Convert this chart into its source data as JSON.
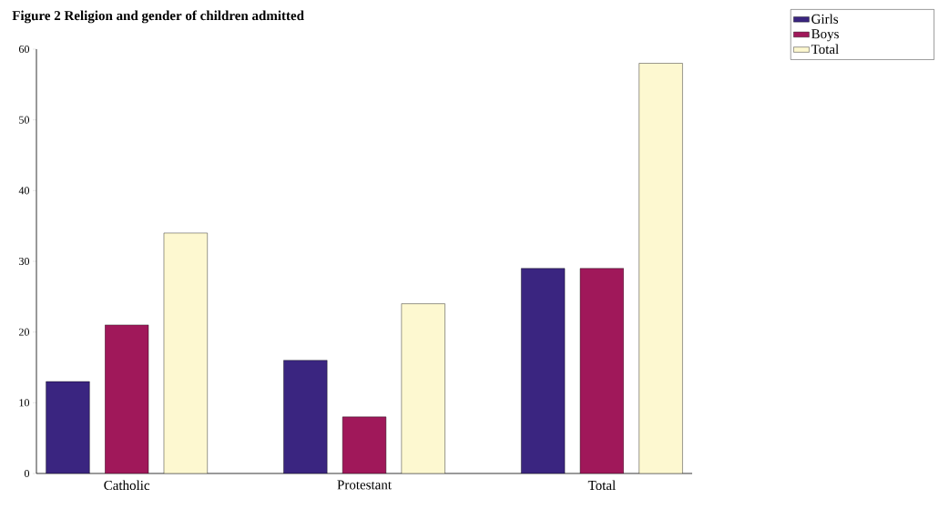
{
  "chart_data": {
    "type": "bar",
    "title": "**Figure 2 Religion and gender of children admitted**",
    "categories": [
      "Catholic",
      "Protestant",
      "Total"
    ],
    "series": [
      {
        "name": "Girls",
        "color": "#3a2580",
        "values": [
          13,
          16,
          29
        ]
      },
      {
        "name": "Boys",
        "color": "#a0185a",
        "values": [
          21,
          8,
          29
        ]
      },
      {
        "name": "Total",
        "color": "#fdf8d0",
        "values": [
          34,
          24,
          58
        ]
      }
    ],
    "ylim": [
      0,
      60
    ],
    "yticks": [
      0,
      10,
      20,
      30,
      40,
      50,
      60
    ],
    "grid": false,
    "legend": "top right"
  }
}
